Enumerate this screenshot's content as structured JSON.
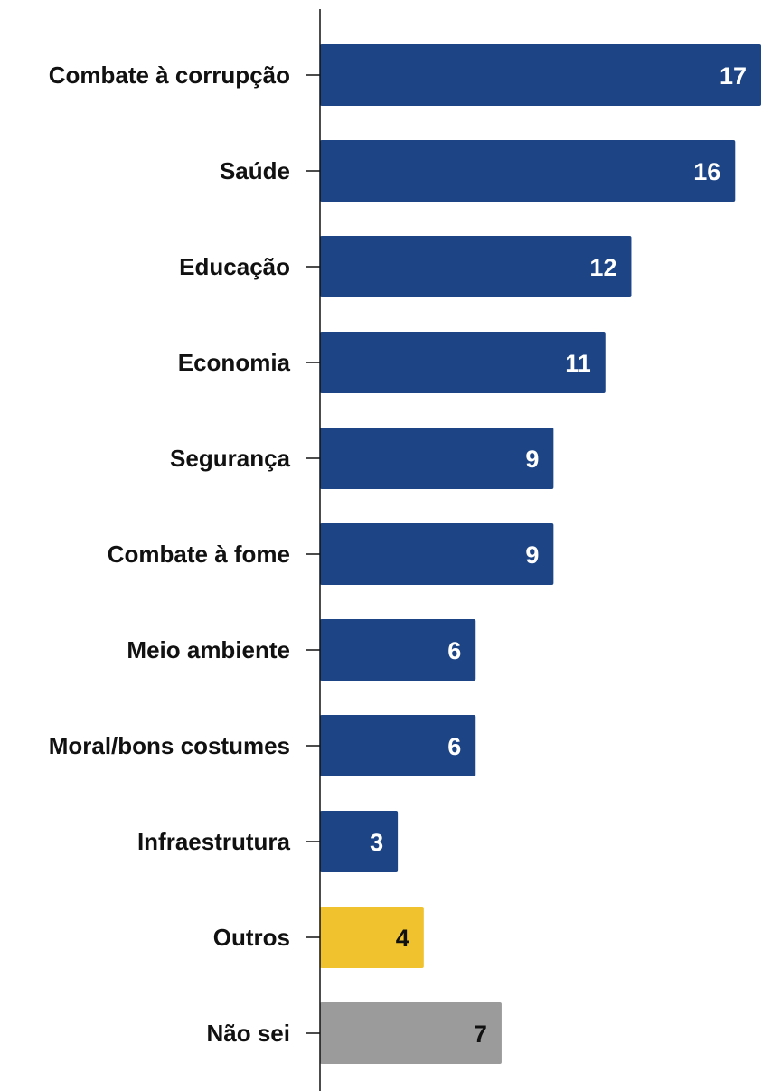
{
  "chart_data": {
    "type": "bar",
    "orientation": "horizontal",
    "title": "",
    "xlabel": "",
    "ylabel": "",
    "xlim": [
      0,
      17
    ],
    "grid": false,
    "categories": [
      "Combate à corrupção",
      "Saúde",
      "Educação",
      "Economia",
      "Segurança",
      "Combate à fome",
      "Meio ambiente",
      "Moral/bons costumes",
      "Infraestrutura",
      "Outros",
      "Não sei"
    ],
    "values": [
      17,
      16,
      12,
      11,
      9,
      9,
      6,
      6,
      3,
      4,
      7
    ],
    "value_labels": [
      "17",
      "16",
      "12",
      "11",
      "9",
      "9",
      "6",
      "6",
      "3",
      "4",
      "7"
    ],
    "bar_colors": [
      "#1d4585",
      "#1d4585",
      "#1d4585",
      "#1d4585",
      "#1d4585",
      "#1d4585",
      "#1d4585",
      "#1d4585",
      "#1d4585",
      "#f0c22e",
      "#9b9b9b"
    ],
    "value_label_colors": [
      "#ffffff",
      "#ffffff",
      "#ffffff",
      "#ffffff",
      "#ffffff",
      "#ffffff",
      "#ffffff",
      "#ffffff",
      "#ffffff",
      "#111111",
      "#111111"
    ],
    "axis_color": "#111111"
  }
}
